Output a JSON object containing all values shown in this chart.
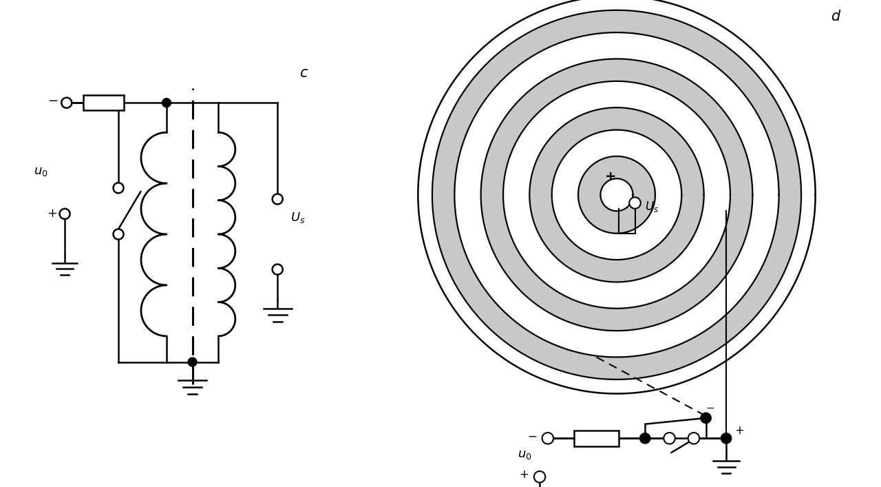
{
  "bg_color": "#ffffff",
  "line_color": "#000000",
  "label_c": "c",
  "label_d": "d",
  "gray_fill": "#c8c8c8",
  "lw_main": 1.8,
  "lw_coil": 2.0
}
